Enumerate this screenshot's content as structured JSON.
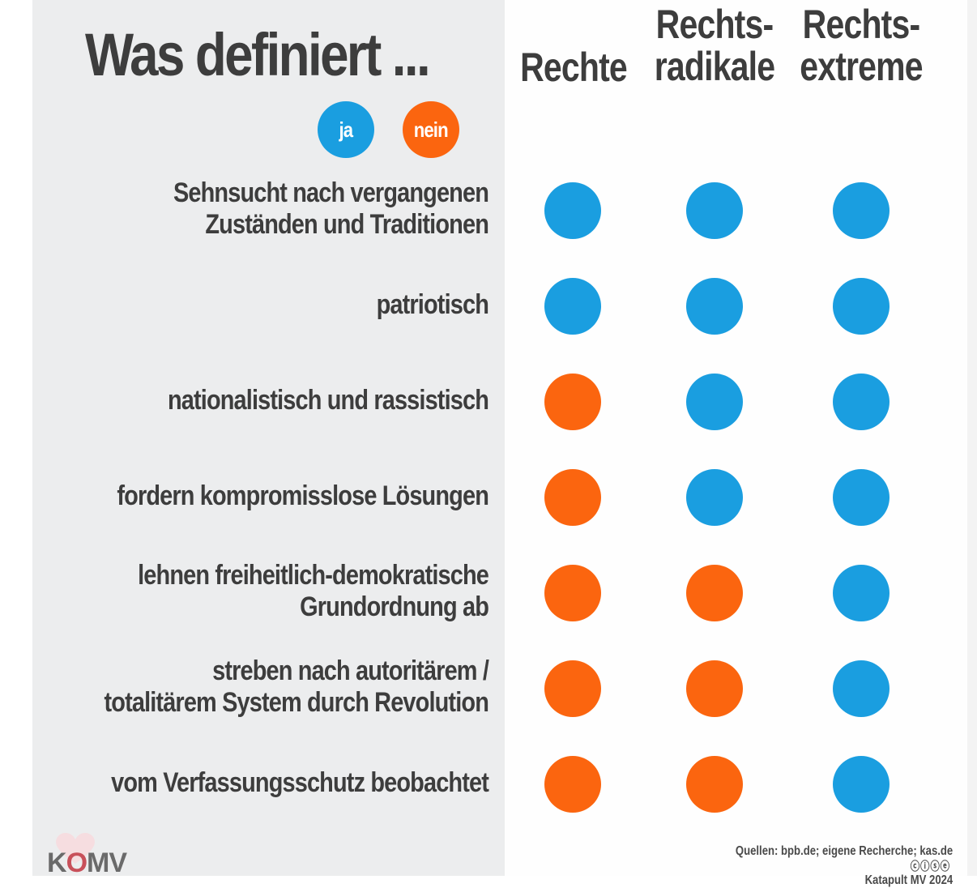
{
  "title": "Was definiert ...",
  "legend": {
    "yes": {
      "label": "ja",
      "color": "#1a9ee0"
    },
    "no": {
      "label": "nein",
      "color": "#fb650f"
    }
  },
  "columns": [
    {
      "lines": [
        "Rechte"
      ]
    },
    {
      "lines": [
        "Rechts-",
        "radikale"
      ]
    },
    {
      "lines": [
        "Rechts-",
        "extreme"
      ]
    }
  ],
  "rows": [
    {
      "lines": [
        "Sehnsucht nach vergangenen",
        "Zuständen und Traditionen"
      ]
    },
    {
      "lines": [
        "patriotisch"
      ]
    },
    {
      "lines": [
        "nationalistisch und rassistisch"
      ]
    },
    {
      "lines": [
        "fordern kompromisslose Lösungen"
      ]
    },
    {
      "lines": [
        "lehnen freiheitlich-demokratische",
        "Grundordnung ab"
      ]
    },
    {
      "lines": [
        "streben nach autoritärem /",
        "totalitärem System durch Revolution"
      ]
    },
    {
      "lines": [
        "vom Verfassungsschutz beobachtet"
      ]
    }
  ],
  "chart_data": {
    "type": "table",
    "title": "Was definiert ...",
    "columns": [
      "Rechte",
      "Rechts-radikale",
      "Rechts-extreme"
    ],
    "rows": [
      "Sehnsucht nach vergangenen Zuständen und Traditionen",
      "patriotisch",
      "nationalistisch und rassistisch",
      "fordern kompromisslose Lösungen",
      "lehnen freiheitlich-demokratische Grundordnung ab",
      "streben nach autoritärem / totalitärem System durch Revolution",
      "vom Verfassungsschutz beobachtet"
    ],
    "legend": [
      "ja",
      "nein"
    ],
    "values": [
      [
        "ja",
        "ja",
        "ja"
      ],
      [
        "ja",
        "ja",
        "ja"
      ],
      [
        "nein",
        "ja",
        "ja"
      ],
      [
        "nein",
        "ja",
        "ja"
      ],
      [
        "nein",
        "nein",
        "ja"
      ],
      [
        "nein",
        "nein",
        "ja"
      ],
      [
        "nein",
        "nein",
        "ja"
      ]
    ]
  },
  "logo": {
    "text_a": "K",
    "text_b": "O",
    "text_c": "MV"
  },
  "footer": {
    "source": "Quellen: bpb.de; eigene Recherche; kas.de",
    "license_icons": "ⓒⓘⓢⓔ",
    "credit": "Katapult MV 2024"
  }
}
